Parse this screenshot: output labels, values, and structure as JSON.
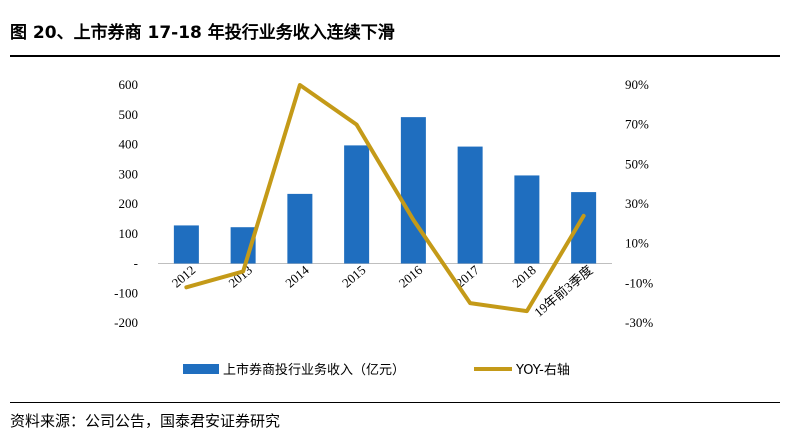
{
  "title": "图 20、上市券商 17-18 年投行业务收入连续下滑",
  "source": "资料来源：公司公告，国泰君安证券研究",
  "chart_data": {
    "type": "bar",
    "title": "图 20、上市券商 17-18 年投行业务收入连续下滑",
    "categories": [
      "2012",
      "2013",
      "2014",
      "2015",
      "2016",
      "2017",
      "2018",
      "19年前3季度"
    ],
    "series": [
      {
        "name": "上市券商投行业务收入（亿元）",
        "type": "bar",
        "axis": "left",
        "color": "#1f6ebf",
        "values": [
          128,
          122,
          234,
          397,
          492,
          393,
          296,
          240
        ]
      },
      {
        "name": "YOY-右轴",
        "type": "line",
        "axis": "right",
        "color": "#c49a18",
        "values": [
          -12,
          -4,
          90,
          70,
          22,
          -20,
          -24,
          24
        ]
      }
    ],
    "y_left": {
      "min": -200,
      "max": 600,
      "ticks": [
        600,
        500,
        400,
        300,
        200,
        100,
        0,
        -100,
        -200
      ],
      "tick_labels": [
        "600",
        "500",
        "400",
        "300",
        "200",
        "100",
        "-",
        "-100",
        "-200"
      ]
    },
    "y_right": {
      "min": -30,
      "max": 90,
      "ticks": [
        90,
        70,
        50,
        30,
        10,
        -10,
        -30
      ],
      "tick_labels": [
        "90%",
        "70%",
        "50%",
        "30%",
        "10%",
        "-10%",
        "-30%"
      ]
    },
    "legend_position": "bottom",
    "grid": false
  }
}
